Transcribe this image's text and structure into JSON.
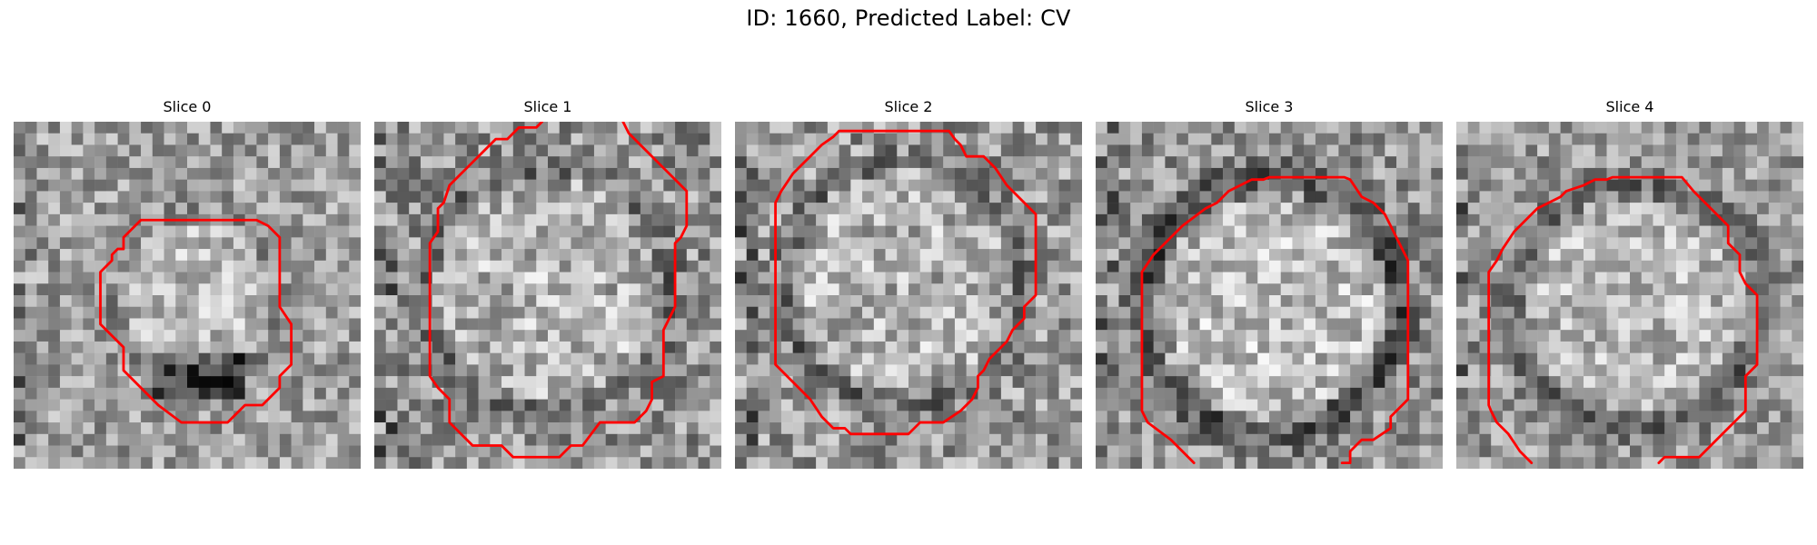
{
  "figure": {
    "title": "ID: 1660, Predicted Label: CV"
  },
  "panels": [
    {
      "title": "Slice 0",
      "image_description": "grayscale noisy microscopy patch with a small round vesicle outlined by a red contour",
      "contour_color": "#ff0000"
    },
    {
      "title": "Slice 1",
      "image_description": "grayscale noisy microscopy patch with a large round vesicle outlined by a red contour",
      "contour_color": "#ff0000"
    },
    {
      "title": "Slice 2",
      "image_description": "grayscale noisy microscopy patch with an octagonal red contour around a vesicle",
      "contour_color": "#ff0000"
    },
    {
      "title": "Slice 3",
      "image_description": "grayscale noisy microscopy patch with a dark vesicle rim and red contour",
      "contour_color": "#ff0000"
    },
    {
      "title": "Slice 4",
      "image_description": "grayscale noisy microscopy patch with a faint vesicle rim and red contour",
      "contour_color": "#ff0000"
    }
  ]
}
